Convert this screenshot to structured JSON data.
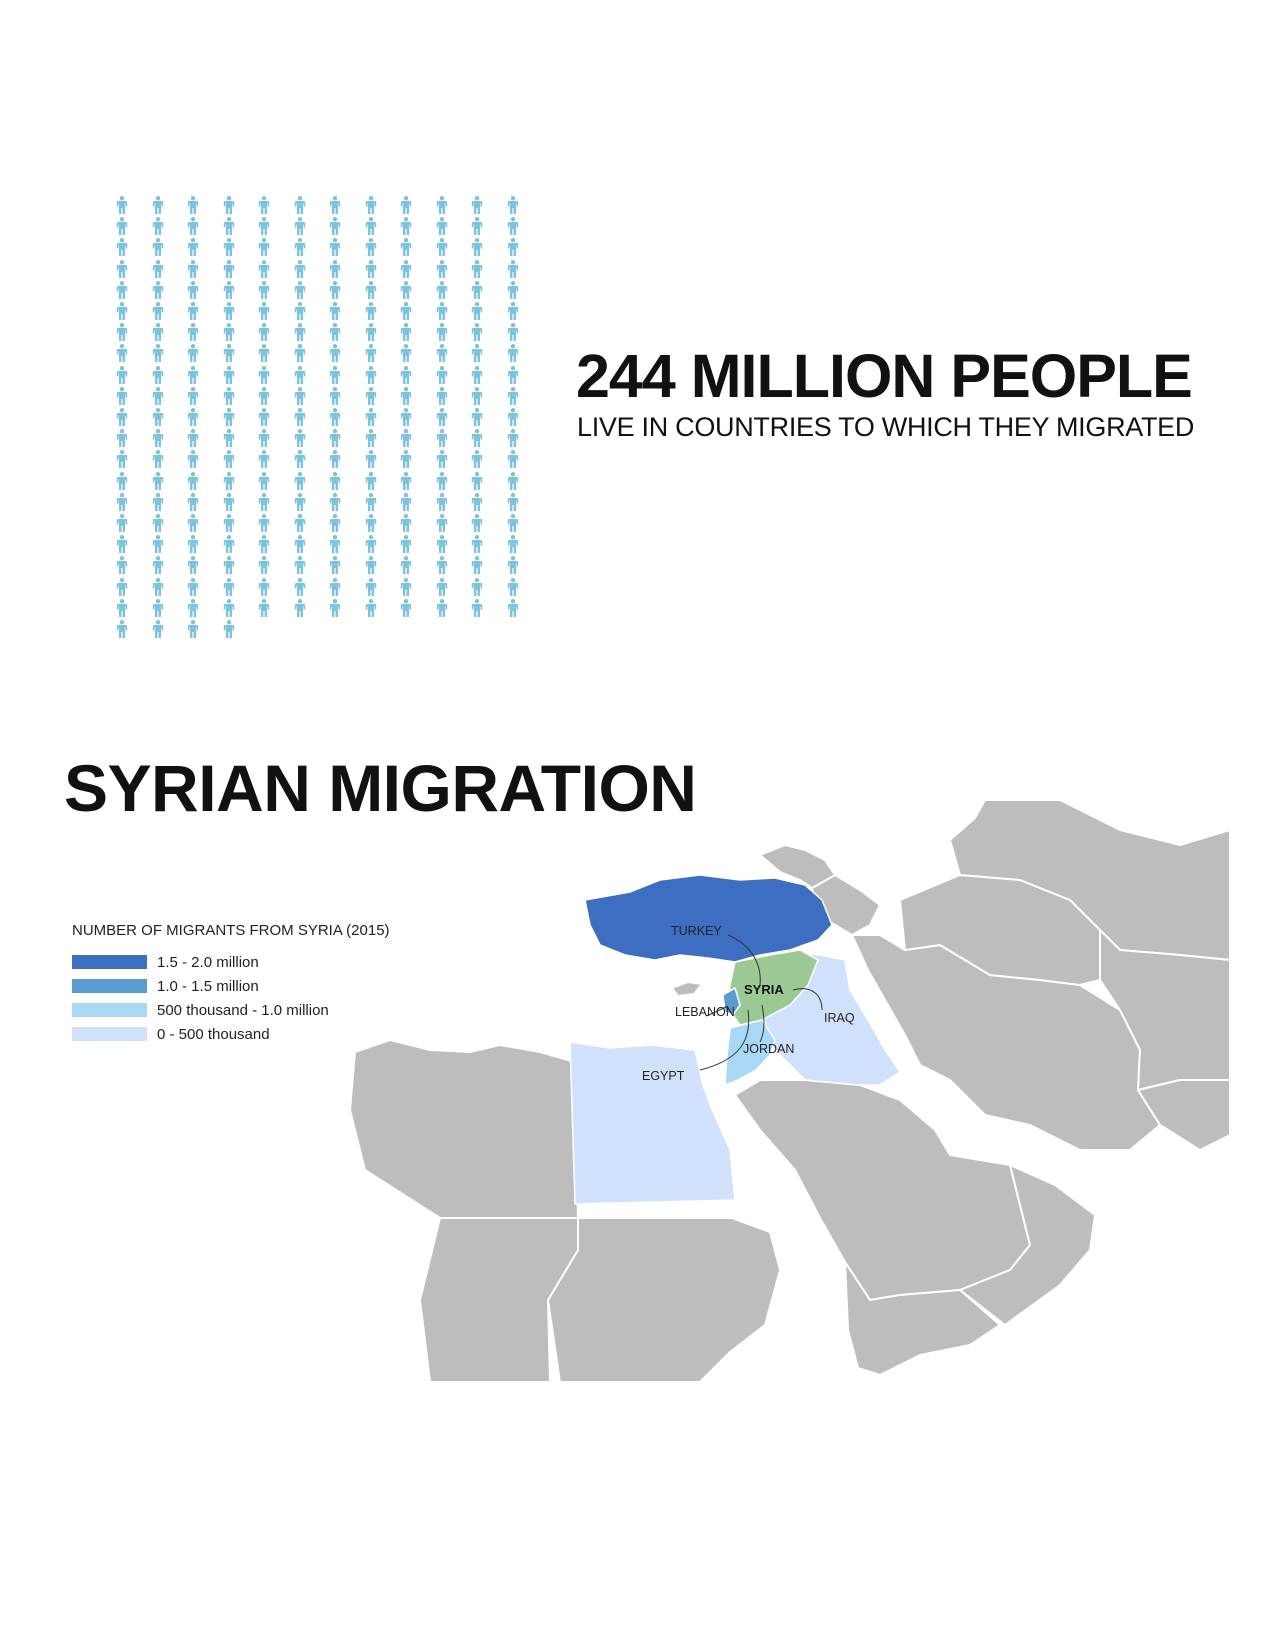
{
  "stat": {
    "number": "244 MILLION PEOPLE",
    "caption": "LIVE IN COUNTRIES TO WHICH THEY MIGRATED",
    "icon": "person-icon",
    "icon_color": "#7cc3dc"
  },
  "section_title": "SYRIAN MIGRATION",
  "legend": {
    "title": "NUMBER OF MIGRANTS FROM SYRIA (2015)",
    "items": [
      {
        "label": "1.5 - 2.0 million",
        "color": "#3d6ec2"
      },
      {
        "label": "1.0 - 1.5 million",
        "color": "#5a9bd0"
      },
      {
        "label": "500 thousand - 1.0 million",
        "color": "#a8d8f5"
      },
      {
        "label": "0 - 500 thousand",
        "color": "#d0e2fb"
      }
    ]
  },
  "countries": {
    "turkey": {
      "label": "TURKEY",
      "color": "#3d6ec2"
    },
    "syria": {
      "label": "SYRIA",
      "color": "#9cc993"
    },
    "lebanon": {
      "label": "LEBANON",
      "color": "#5a9bd0"
    },
    "iraq": {
      "label": "IRAQ",
      "color": "#d0e2fb"
    },
    "jordan": {
      "label": "JORDAN",
      "color": "#a8d8f5"
    },
    "egypt": {
      "label": "EGYPT",
      "color": "#d0e2fb"
    },
    "other_color": "#bdbdbd"
  }
}
